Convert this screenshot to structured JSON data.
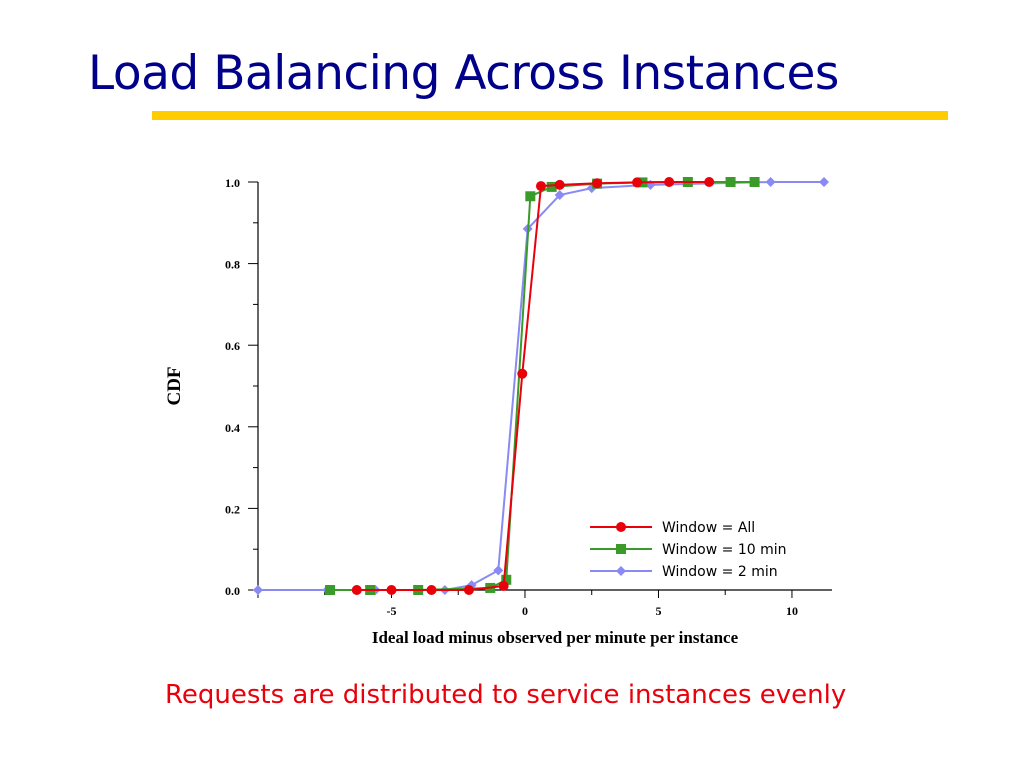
{
  "slide": {
    "title": "Load Balancing Across Instances",
    "caption": "Requests are distributed to service instances evenly",
    "title_color": "#00008b",
    "underline_color": "#ffcc00",
    "caption_color": "#e8000b"
  },
  "chart_data": {
    "type": "line",
    "title": "",
    "xlabel": "Ideal load minus observed per minute per instance",
    "ylabel": "CDF",
    "xlim": [
      -10,
      11.5
    ],
    "ylim": [
      0,
      1
    ],
    "x_ticks": [
      -5,
      0,
      5,
      10
    ],
    "x_tick_labels": [
      "-5",
      "0",
      "5",
      "10"
    ],
    "y_ticks": [
      0,
      0.2,
      0.4,
      0.6,
      0.8,
      1.0
    ],
    "y_tick_labels": [
      "0.0",
      "0.2",
      "0.4",
      "0.6",
      "0.8",
      "1.0"
    ],
    "legend_position": "bottom-right",
    "series": [
      {
        "name": "Window = All",
        "color": "#e8000b",
        "marker": "circle",
        "x": [
          -6.3,
          -5.0,
          -3.5,
          -2.1,
          -0.8,
          -0.1,
          0.6,
          1.3,
          2.7,
          4.2,
          5.4,
          6.9
        ],
        "y": [
          0.0,
          0.0,
          0.0,
          0.0,
          0.01,
          0.53,
          0.99,
          0.993,
          0.997,
          0.999,
          1.0,
          1.0
        ]
      },
      {
        "name": "Window = 10 min",
        "color": "#3a9a2a",
        "marker": "square",
        "x": [
          -7.3,
          -5.8,
          -4.0,
          -1.3,
          -0.7,
          0.2,
          1.0,
          2.7,
          4.4,
          6.1,
          7.7,
          8.6
        ],
        "y": [
          0.0,
          0.0,
          0.0,
          0.005,
          0.025,
          0.965,
          0.988,
          0.996,
          0.999,
          1.0,
          1.0,
          1.0
        ]
      },
      {
        "name": "Window = 2 min",
        "color": "#8a8af5",
        "marker": "diamond",
        "x": [
          -10.0,
          -7.4,
          -5.6,
          -3.0,
          -2.0,
          -1.0,
          0.1,
          1.3,
          2.5,
          4.7,
          9.2,
          11.2
        ],
        "y": [
          0.0,
          0.0,
          0.0,
          0.0,
          0.012,
          0.048,
          0.885,
          0.968,
          0.985,
          0.993,
          1.0,
          1.0
        ]
      }
    ]
  }
}
